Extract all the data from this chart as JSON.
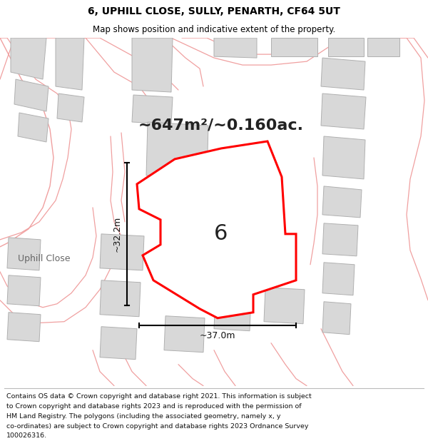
{
  "title_line1": "6, UPHILL CLOSE, SULLY, PENARTH, CF64 5UT",
  "title_line2": "Map shows position and indicative extent of the property.",
  "area_text": "~647m²/~0.160ac.",
  "label_number": "6",
  "dim_width": "~37.0m",
  "dim_height": "~32.2m",
  "footer_text_lines": [
    "Contains OS data © Crown copyright and database right 2021. This information is subject",
    "to Crown copyright and database rights 2023 and is reproduced with the permission of",
    "HM Land Registry. The polygons (including the associated geometry, namely x, y",
    "co-ordinates) are subject to Crown copyright and database rights 2023 Ordnance Survey",
    "100026316."
  ],
  "bg_color": "#ffffff",
  "map_bg": "#ffffff",
  "prop_fill": "#ffffff",
  "prop_edge": "#ff0000",
  "building_fill": "#d8d8d8",
  "building_edge": "#b0b0b0",
  "road_line_color": "#f0a0a0",
  "street_label": "Uphill Close",
  "title_fontsize": 10,
  "subtitle_fontsize": 8.5,
  "area_fontsize": 16,
  "dim_fontsize": 9,
  "street_fontsize": 9,
  "footer_fontsize": 6.8,
  "prop_lw": 2.2,
  "road_lw": 0.9,
  "building_lw": 0.7
}
